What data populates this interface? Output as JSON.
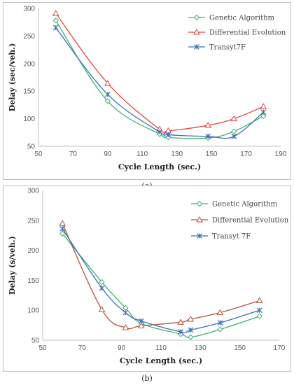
{
  "chart_data": [
    {
      "type": "line",
      "title": "",
      "xlabel": "Cycle Length (sec.)",
      "ylabel": "Delay (sec/veh.)",
      "caption": "(a)",
      "xlim": [
        50,
        190
      ],
      "ylim": [
        50,
        300
      ],
      "x_ticks": [
        "50",
        "70",
        "90",
        "110",
        "130",
        "150",
        "170",
        "190"
      ],
      "y_ticks": [
        "300",
        "250",
        "200",
        "150",
        "100",
        "50"
      ],
      "legend_position": "top-right",
      "series": [
        {
          "name": "Genetic Algorithm",
          "color": "#3cb371",
          "marker": "diamond",
          "x": [
            60,
            90,
            120,
            125,
            148,
            163,
            180
          ],
          "y": [
            278,
            132,
            72,
            66,
            65,
            77,
            105
          ]
        },
        {
          "name": "Differential Evolution",
          "color": "#e8423f",
          "marker": "triangle",
          "x": [
            60,
            90,
            120,
            125,
            148,
            163,
            180
          ],
          "y": [
            291,
            164,
            81,
            78,
            88,
            100,
            122
          ]
        },
        {
          "name": "Transyt7F",
          "color": "#3b6fb6",
          "marker": "star",
          "x": [
            60,
            90,
            120,
            125,
            148,
            163,
            180
          ],
          "y": [
            265,
            144,
            76,
            71,
            68,
            68,
            112
          ]
        }
      ]
    },
    {
      "type": "line",
      "title": "",
      "xlabel": "Cycle Length (sec.)",
      "ylabel": "Delay (s/veh.)",
      "caption": "(b)",
      "xlim": [
        50,
        170
      ],
      "ylim": [
        50,
        300
      ],
      "x_ticks": [
        "50",
        "70",
        "90",
        "110",
        "130",
        "150",
        "170"
      ],
      "y_ticks": [
        "300",
        "250",
        "200",
        "150",
        "100",
        "50"
      ],
      "legend_position": "top-right",
      "series": [
        {
          "name": "Genetic Algorithm",
          "color": "#3cb371",
          "marker": "diamond",
          "x": [
            60,
            80,
            92,
            100,
            120,
            125,
            140,
            160
          ],
          "y": [
            228,
            147,
            104,
            78,
            60,
            55,
            68,
            90
          ]
        },
        {
          "name": "Differential Evolution",
          "color": "#b5533c",
          "marker": "triangle",
          "x": [
            60,
            80,
            92,
            100,
            120,
            125,
            140,
            160
          ],
          "y": [
            245,
            101,
            71,
            74,
            80,
            85,
            96,
            116
          ]
        },
        {
          "name": "Transyt 7F",
          "color": "#3b6fb6",
          "marker": "star",
          "x": [
            60,
            80,
            92,
            100,
            120,
            125,
            140,
            160
          ],
          "y": [
            236,
            137,
            96,
            82,
            64,
            67,
            79,
            100
          ]
        }
      ]
    }
  ]
}
